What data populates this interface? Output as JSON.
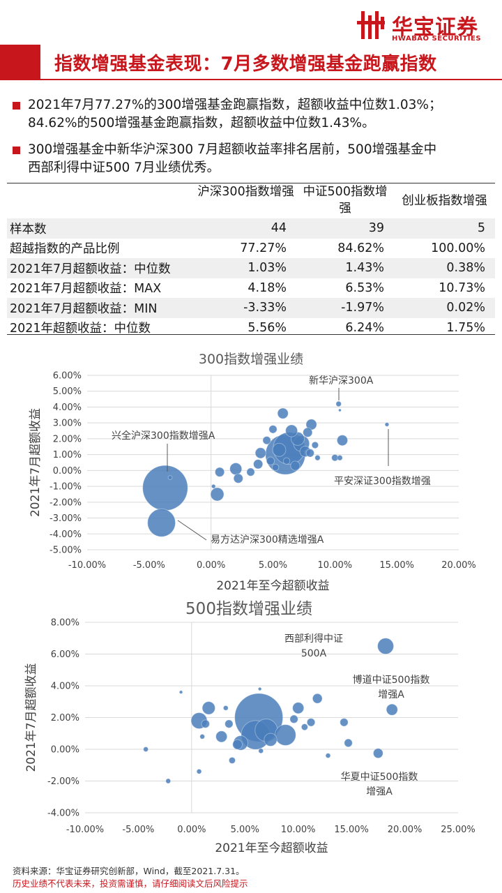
{
  "brand": {
    "name_cn": "华宝证券",
    "name_en": "HWABAO SECURITIES"
  },
  "title": "指数增强基金表现：7月多数增强基金跑赢指数",
  "bullets": [
    {
      "lines": [
        "2021年7月77.27%的300增强基金跑赢指数，超额收益中位数1.03%；",
        "84.62%的500增强基金跑赢指数，超额收益中位数1.43%。"
      ]
    },
    {
      "lines": [
        "300增强基金中新华沪深300 7月超额收益率排名居前，500增强基金中",
        "西部利得中证500 7月业绩优秀。"
      ]
    }
  ],
  "table": {
    "headers": [
      "",
      "沪深300指数增强",
      "中证500指数增强",
      "创业板指数增强"
    ],
    "rows": [
      [
        "样本数",
        "44",
        "39",
        "5"
      ],
      [
        "超越指数的产品比例",
        "77.27%",
        "84.62%",
        "100.00%"
      ],
      [
        "2021年7月超额收益：中位数",
        "1.03%",
        "1.43%",
        "0.38%"
      ],
      [
        "2021年7月超额收益：MAX",
        "4.18%",
        "6.53%",
        "10.73%"
      ],
      [
        "2021年7月超额收益：MIN",
        "-3.33%",
        "-1.97%",
        "0.02%"
      ],
      [
        "2021年超额收益：中位数",
        "5.56%",
        "6.24%",
        "1.75%"
      ]
    ]
  },
  "chart_data": [
    {
      "type": "scatter",
      "title": "300指数增强业绩",
      "xlabel": "2021年至今超额收益",
      "ylabel": "2021年7月超额收益",
      "xlim": [
        -10,
        20
      ],
      "ylim": [
        -5,
        6
      ],
      "x_ticks": [
        "-10.00%",
        "-5.00%",
        "0.00%",
        "5.00%",
        "10.00%",
        "15.00%",
        "20.00%"
      ],
      "y_ticks": [
        "6.00%",
        "5.00%",
        "4.00%",
        "3.00%",
        "2.00%",
        "1.00%",
        "0.00%",
        "-1.00%",
        "-2.00%",
        "-3.00%",
        "-4.00%",
        "-5.00%"
      ],
      "grid": "horizontal",
      "bubble_color": "#4a7ebb",
      "points": [
        {
          "x": -3.7,
          "y": -1.1,
          "size": 34
        },
        {
          "x": -4.0,
          "y": -3.3,
          "size": 21
        },
        {
          "x": -3.3,
          "y": -0.45,
          "size": 3
        },
        {
          "x": 0.5,
          "y": -1.5,
          "size": 10
        },
        {
          "x": 0.2,
          "y": -1.0,
          "size": 3
        },
        {
          "x": 0.7,
          "y": -0.1,
          "size": 7
        },
        {
          "x": 2.0,
          "y": 0.1,
          "size": 9
        },
        {
          "x": 2.2,
          "y": -0.5,
          "size": 7
        },
        {
          "x": 3.2,
          "y": -0.1,
          "size": 6
        },
        {
          "x": 3.8,
          "y": 0.4,
          "size": 7
        },
        {
          "x": 4.0,
          "y": 1.1,
          "size": 8
        },
        {
          "x": 4.5,
          "y": 1.9,
          "size": 6
        },
        {
          "x": 4.8,
          "y": 0.6,
          "size": 6
        },
        {
          "x": 5.0,
          "y": 2.6,
          "size": 6
        },
        {
          "x": 5.5,
          "y": 1.3,
          "size": 10
        },
        {
          "x": 5.8,
          "y": 3.6,
          "size": 8
        },
        {
          "x": 6.0,
          "y": 1.0,
          "size": 30
        },
        {
          "x": 6.3,
          "y": 1.4,
          "size": 24
        },
        {
          "x": 6.5,
          "y": 2.5,
          "size": 9
        },
        {
          "x": 6.8,
          "y": 0.3,
          "size": 7
        },
        {
          "x": 7.0,
          "y": 2.0,
          "size": 10
        },
        {
          "x": 7.3,
          "y": 1.7,
          "size": 12
        },
        {
          "x": 7.6,
          "y": 1.2,
          "size": 8
        },
        {
          "x": 7.8,
          "y": 2.4,
          "size": 7
        },
        {
          "x": 8.1,
          "y": 2.9,
          "size": 8
        },
        {
          "x": 8.0,
          "y": 1.1,
          "size": 6
        },
        {
          "x": 8.4,
          "y": 1.6,
          "size": 5
        },
        {
          "x": 8.6,
          "y": 0.8,
          "size": 4
        },
        {
          "x": 6.1,
          "y": 0.6,
          "size": 5
        },
        {
          "x": 5.2,
          "y": 0.2,
          "size": 5
        },
        {
          "x": 10.0,
          "y": 0.8,
          "size": 5
        },
        {
          "x": 10.4,
          "y": 0.8,
          "size": 4
        },
        {
          "x": 10.6,
          "y": 1.9,
          "size": 8
        },
        {
          "x": 10.3,
          "y": 4.2,
          "size": 4
        },
        {
          "x": 10.4,
          "y": 3.8,
          "size": 2
        },
        {
          "x": 14.2,
          "y": 2.9,
          "size": 3
        }
      ],
      "annotations": [
        {
          "text": "新华沪深300A"
        },
        {
          "text": "兴全沪深300指数增强A"
        },
        {
          "text": "平安深证300指数增强"
        },
        {
          "text": "易方达沪深300精选增强A"
        }
      ]
    },
    {
      "type": "scatter",
      "title": "500指数增强业绩",
      "xlabel": "2021年至今超额收益",
      "ylabel": "2021年7月超额收益",
      "xlim": [
        -10,
        25
      ],
      "ylim": [
        -4,
        8
      ],
      "x_ticks": [
        "-10.00%",
        "-5.00%",
        "0.00%",
        "5.00%",
        "10.00%",
        "15.00%",
        "20.00%",
        "25.00%"
      ],
      "y_ticks": [
        "8.00%",
        "6.00%",
        "4.00%",
        "2.00%",
        "0.00%",
        "-2.00%",
        "-4.00%"
      ],
      "grid": "horizontal",
      "bubble_color": "#4a7ebb",
      "points": [
        {
          "x": 18.2,
          "y": 6.5,
          "size": 10
        },
        {
          "x": 18.8,
          "y": 2.5,
          "size": 7
        },
        {
          "x": 17.5,
          "y": -0.25,
          "size": 6
        },
        {
          "x": 14.7,
          "y": 0.4,
          "size": 5
        },
        {
          "x": 14.3,
          "y": 1.7,
          "size": 5
        },
        {
          "x": 12.8,
          "y": -0.4,
          "size": 3
        },
        {
          "x": 11.8,
          "y": 3.2,
          "size": 6
        },
        {
          "x": 11.2,
          "y": 1.7,
          "size": 5
        },
        {
          "x": 10.6,
          "y": 1.4,
          "size": 4
        },
        {
          "x": 10.0,
          "y": 2.6,
          "size": 7
        },
        {
          "x": 9.6,
          "y": 1.9,
          "size": 5
        },
        {
          "x": 8.8,
          "y": 0.9,
          "size": 13
        },
        {
          "x": 6.3,
          "y": 2.0,
          "size": 30
        },
        {
          "x": 6.0,
          "y": 0.9,
          "size": 18
        },
        {
          "x": 7.0,
          "y": 1.2,
          "size": 14
        },
        {
          "x": 7.4,
          "y": 0.6,
          "size": 8
        },
        {
          "x": 6.5,
          "y": -0.1,
          "size": 3
        },
        {
          "x": 6.4,
          "y": 3.8,
          "size": 2
        },
        {
          "x": 4.6,
          "y": 0.4,
          "size": 9
        },
        {
          "x": 4.3,
          "y": 0.3,
          "size": 6
        },
        {
          "x": 3.8,
          "y": -0.7,
          "size": 4
        },
        {
          "x": 2.8,
          "y": 0.8,
          "size": 7
        },
        {
          "x": 3.2,
          "y": 2.6,
          "size": 3
        },
        {
          "x": 3.5,
          "y": 1.6,
          "size": 5
        },
        {
          "x": 1.6,
          "y": 2.6,
          "size": 8
        },
        {
          "x": 0.7,
          "y": 1.8,
          "size": 10
        },
        {
          "x": 1.3,
          "y": 1.6,
          "size": 5
        },
        {
          "x": 1.0,
          "y": 0.8,
          "size": 3
        },
        {
          "x": 0.7,
          "y": -1.4,
          "size": 3
        },
        {
          "x": -1.0,
          "y": 3.6,
          "size": 2
        },
        {
          "x": -2.2,
          "y": -2.0,
          "size": 3
        },
        {
          "x": -4.3,
          "y": 0.0,
          "size": 3
        }
      ],
      "annotations": [
        {
          "text": "西部利得中证",
          "text2": "500A"
        },
        {
          "text": "博道中证500指数",
          "text2": "增强A"
        },
        {
          "text": "华夏中证500指数",
          "text2": "增强A"
        }
      ]
    }
  ],
  "footer": {
    "source": "资料来源：华宝证券研究创新部，Wind，截至2021.7.31。",
    "risk": "历史业绩不代表未来，投资需谨慎，请仔细阅读文后风险提示"
  }
}
